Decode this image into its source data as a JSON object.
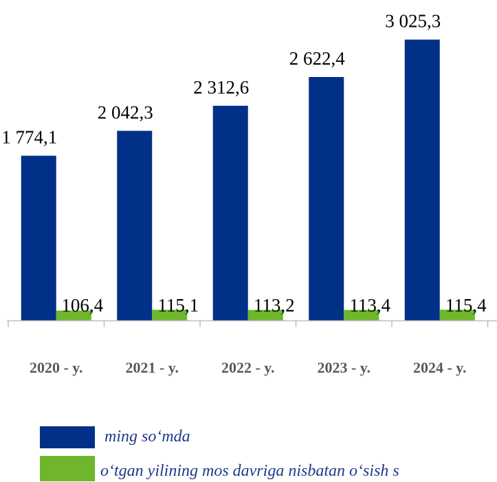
{
  "chart_data": {
    "type": "bar",
    "categories": [
      "2020 - y.",
      "2021 - y.",
      "2022 - y.",
      "2023 - y.",
      "2024 - y."
    ],
    "series": [
      {
        "name": "ming so‘mda",
        "color": "#003087",
        "values": [
          1774.1,
          2042.3,
          2312.6,
          2622.4,
          3025.3
        ],
        "value_labels": [
          "1 774,1",
          "2 042,3",
          "2 312,6",
          "2 622,4",
          "3 025,3"
        ]
      },
      {
        "name": "o‘tgan yilining mos davriga nisbatan o‘sish s",
        "color": "#6fb62c",
        "values": [
          106.4,
          115.1,
          113.2,
          113.4,
          115.4
        ],
        "value_labels": [
          "106,4",
          "115,1",
          "113,2",
          "113,4",
          "115,4"
        ]
      }
    ],
    "ylim": [
      0,
      3400
    ]
  }
}
